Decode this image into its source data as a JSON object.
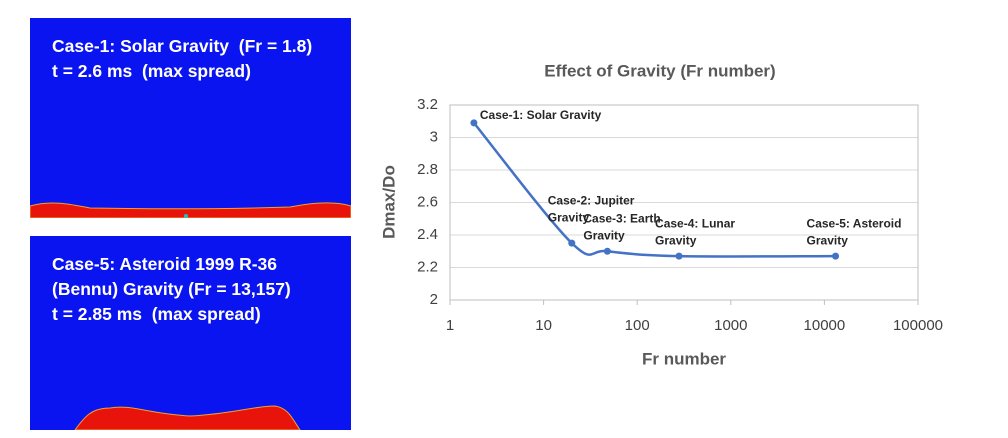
{
  "panels": [
    {
      "lines": [
        "Case-1: Solar Gravity  (Fr = 1.8)",
        "t = 2.6 ms  (max spread)"
      ]
    },
    {
      "lines": [
        "Case-5: Asteroid 1999 R-36",
        "(Bennu) Gravity (Fr = 13,157)",
        "t = 2.85 ms  (max spread)"
      ]
    }
  ],
  "chart_data": {
    "type": "line",
    "title": "Effect of Gravity (Fr number)",
    "x_label": "Fr number",
    "y_label": "Dmax/Do",
    "x_scale": "log",
    "smooth": true,
    "grid": true,
    "xlim": [
      1,
      100000
    ],
    "xticks": [
      1,
      10,
      100,
      1000,
      10000,
      100000
    ],
    "ylim": [
      2,
      3.2
    ],
    "yticks": [
      2,
      2.2,
      2.4,
      2.6,
      2.8,
      3,
      3.2
    ],
    "series": [
      {
        "color": "#4472c4",
        "x": [
          1.8,
          20,
          48,
          280,
          13157
        ],
        "values": [
          3.09,
          2.35,
          2.3,
          2.27,
          2.27
        ],
        "point_labels": [
          [
            "Case-1: Solar Gravity"
          ],
          [
            "Case-2: Jupiter",
            "Gravity"
          ],
          [
            "Case-3: Earth",
            "Gravity"
          ],
          [
            "Case-4: Lunar",
            "Gravity"
          ],
          [
            "Case-5: Asteroid",
            "Gravity"
          ]
        ]
      }
    ]
  }
}
